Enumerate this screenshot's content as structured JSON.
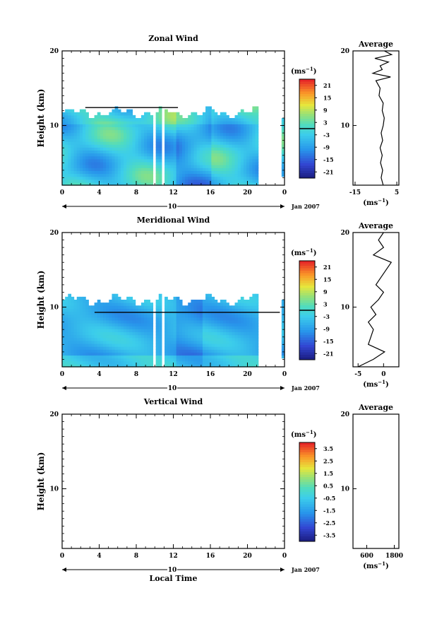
{
  "chart_data": [
    {
      "type": "heatmap",
      "title": "Zonal Wind",
      "ylabel": "Height (km)",
      "unit_base": "(ms",
      "unit_exp": "−1",
      "unit_close": ")",
      "x_ticks": [
        "0",
        "4",
        "8",
        "12",
        "16",
        "20",
        "0"
      ],
      "y_ticks": [
        "10",
        "20"
      ],
      "xlim": [
        0,
        24
      ],
      "ylim": [
        2,
        20
      ],
      "day_label": "10",
      "date_label": "Jan 2007",
      "colorbar": {
        "ticks": [
          "21",
          "15",
          "9",
          "3",
          "-3",
          "-9",
          "-15",
          "-21"
        ],
        "values": [
          21,
          15,
          9,
          3,
          -3,
          -9,
          -15,
          -21
        ],
        "range": [
          -24,
          24
        ],
        "zero_line": 0
      },
      "field": {
        "x_end": 21,
        "top_base": 11.5,
        "top_amp": 0.5,
        "extra_strips": [
          [
            23.7,
            23.9,
            3,
            11
          ]
        ],
        "gaps": [
          [
            9.5,
            9.9
          ],
          [
            10.5,
            10.9
          ]
        ],
        "hline": {
          "y": 12.4,
          "x0": 2.5,
          "x1": 12.5
        },
        "palette": "zonal"
      },
      "average": {
        "title": "Average",
        "x_ticks": [
          "-15",
          "5"
        ],
        "xlim": [
          -16,
          6
        ],
        "unit_base": "(ms",
        "unit_exp": "−1",
        "unit_close": ")",
        "y": [
          2,
          3,
          4,
          5,
          6,
          7,
          8,
          9,
          10,
          11,
          12,
          13,
          14,
          15,
          16,
          16.5,
          17,
          17.5,
          18,
          18.5,
          19,
          19.5,
          20
        ],
        "x": [
          -1.5,
          -2.5,
          -1.8,
          -2.8,
          -2.0,
          -3.0,
          -1.8,
          -2.5,
          -1.5,
          -1.0,
          -2.0,
          -1.5,
          -3.5,
          -3.0,
          -5.0,
          2.0,
          -6.5,
          -2.0,
          -3.0,
          1.0,
          -5.5,
          2.5,
          -1.0
        ]
      }
    },
    {
      "type": "heatmap",
      "title": "Meridional Wind",
      "ylabel": "Height (km)",
      "unit_base": "(ms",
      "unit_exp": "−1",
      "unit_close": ")",
      "x_ticks": [
        "0",
        "4",
        "8",
        "12",
        "16",
        "20",
        "0"
      ],
      "y_ticks": [
        "10",
        "20"
      ],
      "xlim": [
        0,
        24
      ],
      "ylim": [
        2,
        20
      ],
      "day_label": "10",
      "date_label": "Jan 2007",
      "colorbar": {
        "ticks": [
          "21",
          "15",
          "9",
          "3",
          "-3",
          "-9",
          "-15",
          "-21"
        ],
        "values": [
          21,
          15,
          9,
          3,
          -3,
          -9,
          -15,
          -21
        ],
        "range": [
          -24,
          24
        ],
        "zero_line": 0
      },
      "field": {
        "x_end": 21,
        "top_base": 10.8,
        "top_amp": 0.5,
        "extra_strips": [
          [
            23.7,
            23.9,
            3,
            11
          ]
        ],
        "gaps": [
          [
            9.5,
            9.9
          ],
          [
            10.5,
            10.9
          ]
        ],
        "hline": {
          "y": 9.3,
          "x0": 3.5,
          "x1": 23.5
        },
        "palette": "meridional"
      },
      "average": {
        "title": "Average",
        "x_ticks": [
          "-5",
          "0"
        ],
        "xlim": [
          -6,
          3
        ],
        "unit_base": "(ms",
        "unit_exp": "−1",
        "unit_close": ")",
        "y": [
          2,
          3,
          4,
          5,
          6,
          7,
          8,
          9,
          10,
          11,
          12,
          13,
          14,
          15,
          16,
          17,
          18,
          19,
          20
        ],
        "x": [
          -5.0,
          -2.0,
          0.2,
          -3.0,
          -2.5,
          -2.0,
          -3.0,
          -1.5,
          -2.5,
          -1.0,
          0.0,
          -1.5,
          -0.5,
          0.5,
          1.5,
          -2.0,
          0.0,
          -1.0,
          0.0
        ]
      }
    },
    {
      "type": "heatmap",
      "title": "Vertical Wind",
      "ylabel": "Height (km)",
      "xlabel": "Local Time",
      "unit_base": "(ms",
      "unit_exp": "−1",
      "unit_close": ")",
      "x_ticks": [
        "0",
        "4",
        "8",
        "12",
        "16",
        "20",
        "0"
      ],
      "y_ticks": [
        "10",
        "20"
      ],
      "xlim": [
        0,
        24
      ],
      "ylim": [
        2,
        20
      ],
      "day_label": "10",
      "date_label": "Jan 2007",
      "colorbar": {
        "ticks": [
          "3.5",
          "2.5",
          "1.5",
          "0.5",
          "-0.5",
          "-1.5",
          "-2.5",
          "-3.5"
        ],
        "values": [
          3.5,
          2.5,
          1.5,
          0.5,
          -0.5,
          -1.5,
          -2.5,
          -3.5
        ],
        "range": [
          -4,
          4
        ],
        "zero_line": null
      },
      "field": null,
      "average": {
        "title": "Average",
        "x_ticks": [
          "600",
          "1800"
        ],
        "xlim": [
          0,
          2000
        ],
        "unit_base": "(ms",
        "unit_exp": "−1",
        "unit_close": ")",
        "y": [],
        "x": []
      }
    }
  ]
}
